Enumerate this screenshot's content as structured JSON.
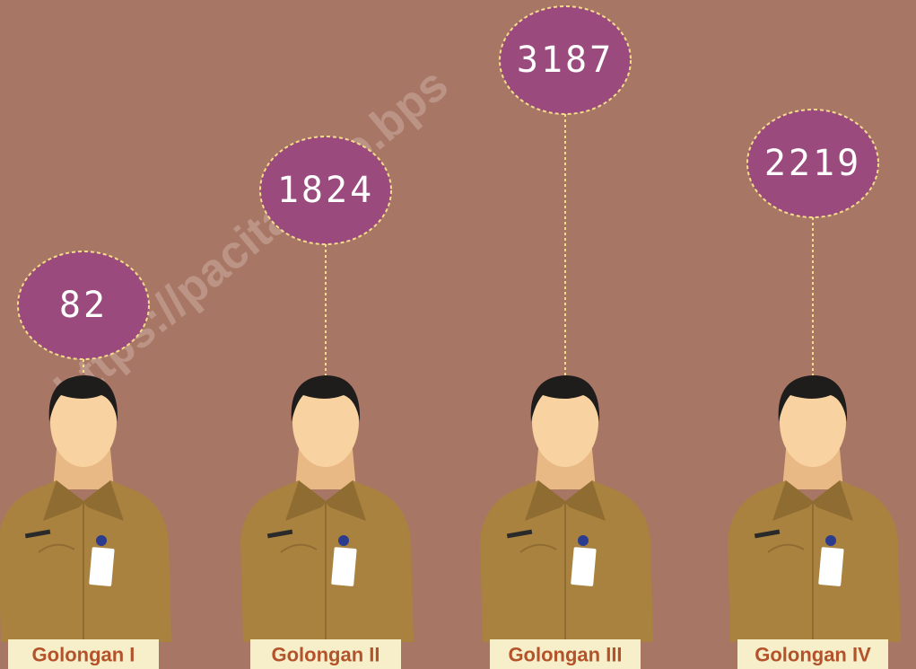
{
  "watermark": "https://pacitankab.bps",
  "items": [
    {
      "label": "Golongan I",
      "value": 82
    },
    {
      "label": "Golongan II",
      "value": 1824
    },
    {
      "label": "Golongan III",
      "value": 3187
    },
    {
      "label": "Golongan IV",
      "value": 2219
    }
  ]
}
